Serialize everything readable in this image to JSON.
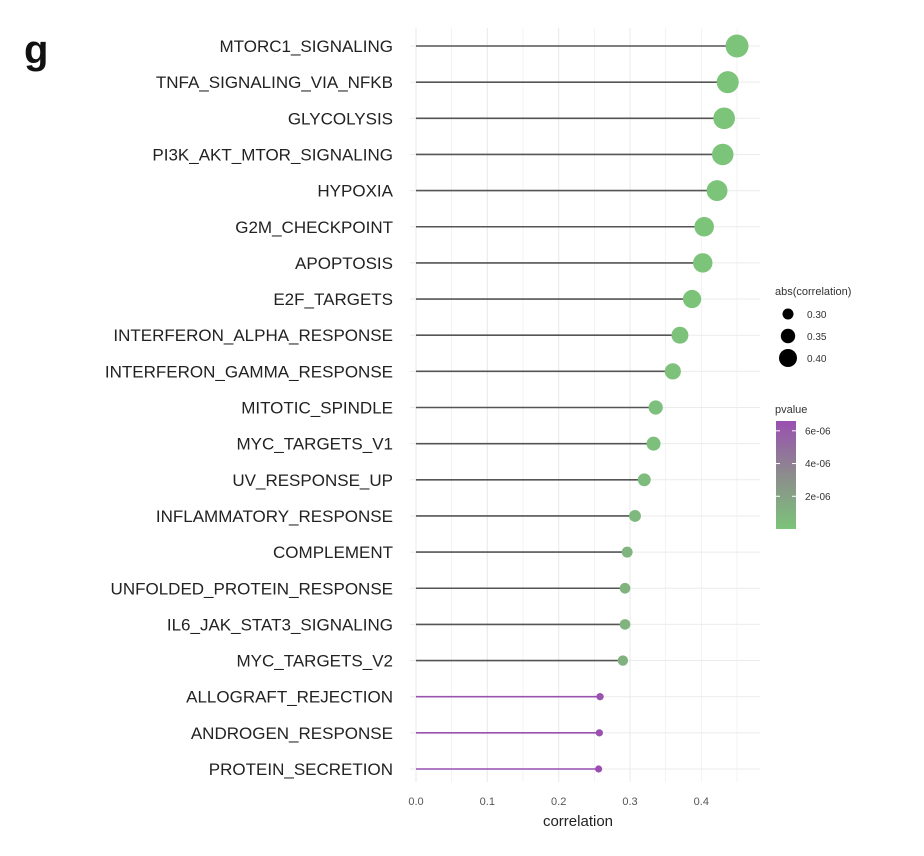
{
  "panel_label": "g",
  "chart_data": {
    "type": "lollipop",
    "title": "",
    "xlabel": "correlation",
    "ylabel": "",
    "xlim": [
      0,
      0.46
    ],
    "x_ticks": [
      0.0,
      0.1,
      0.2,
      0.3,
      0.4
    ],
    "x_tick_labels": [
      "0.0",
      "0.1",
      "0.2",
      "0.3",
      "0.4"
    ],
    "grid": true,
    "legend_position": "right",
    "categories": [
      "MTORC1_SIGNALING",
      "TNFA_SIGNALING_VIA_NFKB",
      "GLYCOLYSIS",
      "PI3K_AKT_MTOR_SIGNALING",
      "HYPOXIA",
      "G2M_CHECKPOINT",
      "APOPTOSIS",
      "E2F_TARGETS",
      "INTERFERON_ALPHA_RESPONSE",
      "INTERFERON_GAMMA_RESPONSE",
      "MITOTIC_SPINDLE",
      "MYC_TARGETS_V1",
      "UV_RESPONSE_UP",
      "INFLAMMATORY_RESPONSE",
      "COMPLEMENT",
      "UNFOLDED_PROTEIN_RESPONSE",
      "IL6_JAK_STAT3_SIGNALING",
      "MYC_TARGETS_V2",
      "ALLOGRAFT_REJECTION",
      "ANDROGEN_RESPONSE",
      "PROTEIN_SECRETION"
    ],
    "correlation": [
      0.45,
      0.437,
      0.432,
      0.43,
      0.422,
      0.404,
      0.402,
      0.387,
      0.37,
      0.36,
      0.336,
      0.333,
      0.32,
      0.307,
      0.296,
      0.293,
      0.293,
      0.29,
      0.258,
      0.257,
      0.256
    ],
    "pvalue": [
      1e-08,
      1e-08,
      1e-08,
      1e-08,
      1e-08,
      2e-08,
      2e-08,
      5e-08,
      1e-07,
      1.5e-07,
      3e-07,
      3e-07,
      5e-07,
      7e-07,
      9e-07,
      1e-06,
      1e-06,
      1.1e-06,
      6.4e-06,
      6.5e-06,
      6.6e-06
    ],
    "size_legend": {
      "title": "abs(correlation)",
      "values": [
        0.3,
        0.35,
        0.4
      ],
      "labels": [
        "0.30",
        "0.35",
        "0.40"
      ]
    },
    "color_legend": {
      "title": "pvalue",
      "range": [
        0,
        6.6e-06
      ],
      "ticks": [
        2e-06,
        4e-06,
        6e-06
      ],
      "labels": [
        "2e-06",
        "4e-06",
        "6e-06"
      ],
      "low_color": "#7cc47a",
      "high_color": "#9a4fb0"
    },
    "stem_color": "#555555",
    "grid_color": "#ebebeb"
  }
}
